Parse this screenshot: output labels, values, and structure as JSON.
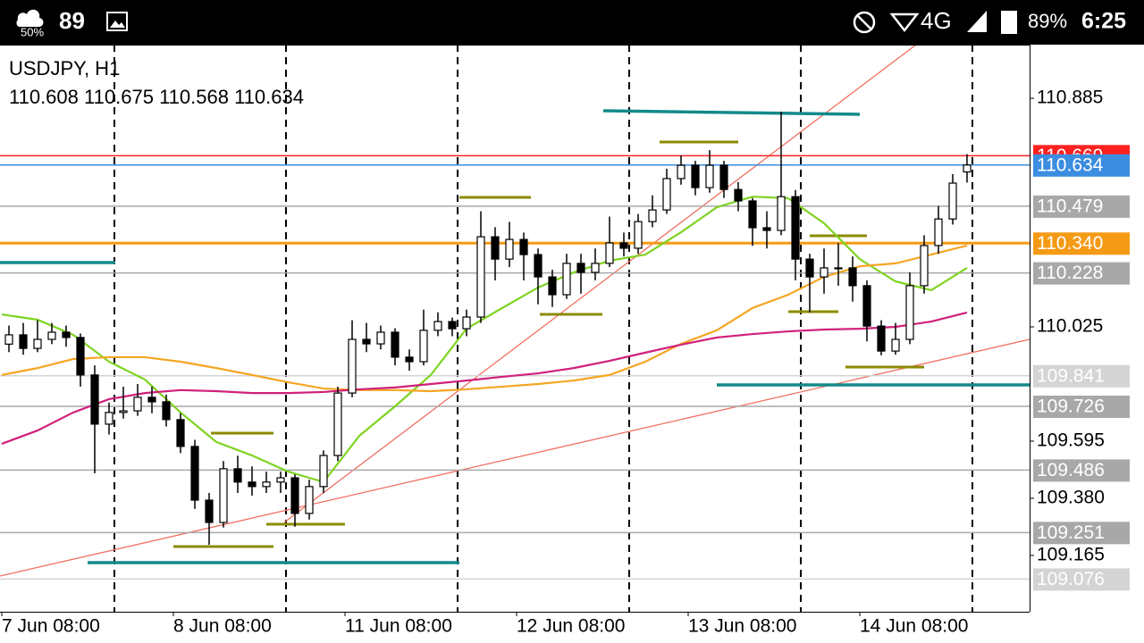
{
  "status_bar": {
    "battery_saver": "50%",
    "signal": "89",
    "network": "4G",
    "battery": "89%",
    "time": "6:25"
  },
  "chart_data": {
    "type": "candlestick",
    "title": "USDJPY, H1",
    "x": [
      1,
      3,
      5,
      7,
      9,
      11,
      13,
      15,
      17,
      19,
      21,
      23,
      25,
      27,
      29,
      31,
      33,
      35,
      37,
      39,
      41,
      43,
      45,
      47,
      49,
      51,
      53,
      55,
      57,
      59,
      61,
      63,
      65,
      67,
      69,
      71,
      73,
      75,
      77,
      79,
      81,
      83,
      85,
      87,
      89,
      91,
      93,
      95,
      97,
      99,
      101,
      103,
      105,
      107,
      109,
      111,
      113,
      115,
      117,
      119,
      121,
      123,
      125,
      127,
      129,
      131,
      133,
      135
    ],
    "open": [
      109.96,
      109.995,
      109.944,
      109.978,
      110.005,
      109.985,
      109.844,
      109.659,
      109.703,
      109.709,
      109.76,
      109.743,
      109.676,
      109.575,
      109.373,
      109.289,
      109.491,
      109.441,
      109.424,
      109.441,
      109.457,
      109.323,
      109.424,
      109.541,
      109.776,
      109.978,
      109.961,
      110.005,
      109.911,
      109.894,
      110.012,
      110.045,
      110.018,
      110.062,
      110.364,
      110.28,
      110.354,
      110.297,
      110.213,
      110.146,
      110.264,
      110.23,
      110.264,
      110.341,
      110.321,
      110.421,
      110.465,
      110.583,
      110.633,
      110.549,
      110.633,
      110.542,
      110.499,
      110.398,
      110.388,
      110.515,
      110.28,
      110.213,
      110.247,
      110.247,
      110.18,
      110.028,
      109.934,
      109.978,
      110.18,
      110.331,
      110.431,
      110.608
    ],
    "high": [
      110.03,
      110.04,
      110.05,
      110.04,
      110.03,
      110.0,
      109.88,
      109.74,
      109.8,
      109.81,
      109.8,
      109.77,
      109.7,
      109.6,
      109.4,
      109.52,
      109.54,
      109.5,
      109.48,
      109.48,
      109.47,
      109.45,
      109.56,
      109.8,
      110.05,
      110.04,
      110.03,
      110.02,
      109.94,
      110.09,
      110.08,
      110.06,
      110.09,
      110.46,
      110.4,
      110.42,
      110.38,
      110.32,
      110.24,
      110.3,
      110.3,
      110.32,
      110.44,
      110.38,
      110.45,
      110.52,
      110.62,
      110.67,
      110.65,
      110.69,
      110.65,
      110.57,
      110.51,
      110.46,
      110.835,
      110.54,
      110.3,
      110.32,
      110.34,
      110.29,
      110.2,
      110.05,
      110.04,
      110.23,
      110.37,
      110.48,
      110.6,
      110.675
    ],
    "low": [
      109.93,
      109.92,
      109.93,
      109.96,
      109.95,
      109.8,
      109.474,
      109.62,
      109.68,
      109.69,
      109.7,
      109.65,
      109.55,
      109.34,
      109.205,
      109.27,
      109.4,
      109.39,
      109.4,
      109.4,
      109.273,
      109.3,
      109.4,
      109.52,
      109.76,
      109.93,
      109.94,
      109.88,
      109.86,
      109.88,
      109.99,
      109.99,
      109.99,
      110.04,
      110.2,
      110.25,
      110.2,
      110.11,
      110.1,
      110.13,
      110.15,
      110.2,
      110.25,
      110.29,
      110.3,
      110.4,
      110.45,
      110.56,
      110.52,
      110.53,
      110.51,
      110.46,
      110.33,
      110.32,
      110.37,
      110.2,
      110.08,
      110.15,
      110.18,
      110.12,
      109.97,
      109.918,
      109.92,
      109.96,
      110.15,
      110.3,
      110.41,
      110.568
    ],
    "close": [
      109.995,
      109.944,
      109.978,
      110.005,
      109.985,
      109.844,
      109.659,
      109.703,
      109.709,
      109.76,
      109.743,
      109.676,
      109.575,
      109.373,
      109.289,
      109.491,
      109.441,
      109.424,
      109.441,
      109.457,
      109.323,
      109.424,
      109.541,
      109.776,
      109.978,
      109.961,
      110.005,
      109.911,
      109.894,
      110.012,
      110.045,
      110.018,
      110.062,
      110.364,
      110.28,
      110.354,
      110.297,
      110.213,
      110.146,
      110.264,
      110.23,
      110.264,
      110.341,
      110.321,
      110.421,
      110.465,
      110.583,
      110.633,
      110.549,
      110.633,
      110.542,
      110.499,
      110.398,
      110.388,
      110.515,
      110.28,
      110.213,
      110.247,
      110.247,
      110.18,
      110.028,
      109.934,
      109.978,
      110.18,
      110.331,
      110.431,
      110.566,
      110.634
    ],
    "up_color": "#ffffff",
    "down_color": "#000000",
    "wick_color": "#000000",
    "moving_averages": [
      {
        "color": "#7ed321",
        "x": [
          0,
          5,
          10,
          15,
          20,
          25,
          30,
          35,
          40,
          45,
          50,
          55,
          60,
          65,
          70,
          75,
          80,
          85,
          90,
          95,
          100,
          105,
          110,
          115,
          120,
          125,
          130,
          135
        ],
        "values": [
          110.072,
          110.052,
          109.995,
          109.894,
          109.827,
          109.703,
          109.592,
          109.541,
          109.481,
          109.441,
          109.615,
          109.726,
          109.844,
          110.018,
          110.096,
          110.173,
          110.23,
          110.274,
          110.297,
          110.381,
          110.475,
          110.515,
          110.509,
          110.415,
          110.28,
          110.196,
          110.163,
          110.247
        ]
      },
      {
        "color": "#f5a623",
        "x": [
          0,
          5,
          10,
          15,
          20,
          25,
          30,
          35,
          40,
          45,
          50,
          55,
          60,
          65,
          70,
          75,
          80,
          85,
          90,
          95,
          100,
          105,
          110,
          115,
          120,
          125,
          130,
          135
        ],
        "values": [
          109.844,
          109.87,
          109.904,
          109.911,
          109.911,
          109.894,
          109.87,
          109.844,
          109.817,
          109.793,
          109.787,
          109.787,
          109.783,
          109.79,
          109.8,
          109.81,
          109.823,
          109.844,
          109.894,
          109.961,
          110.012,
          110.096,
          110.146,
          110.213,
          110.253,
          110.264,
          110.297,
          110.331
        ]
      },
      {
        "color": "#d0207a",
        "x": [
          0,
          5,
          10,
          15,
          20,
          25,
          30,
          35,
          40,
          45,
          50,
          55,
          60,
          65,
          70,
          75,
          80,
          85,
          90,
          95,
          100,
          105,
          110,
          115,
          120,
          125,
          130,
          135
        ],
        "values": [
          109.585,
          109.635,
          109.703,
          109.753,
          109.776,
          109.787,
          109.783,
          109.776,
          109.776,
          109.78,
          109.79,
          109.797,
          109.81,
          109.823,
          109.837,
          109.85,
          109.87,
          109.897,
          109.928,
          109.958,
          109.985,
          109.998,
          110.008,
          110.015,
          110.018,
          110.025,
          110.045,
          110.079
        ]
      }
    ],
    "levels": [
      {
        "value": 110.669,
        "color": "#ff2020"
      },
      {
        "value": 110.634,
        "color": "#3b8de0"
      },
      {
        "value": 110.479,
        "color": "#a8a8a8"
      },
      {
        "value": 110.34,
        "label": "110.340",
        "color": "#f59a14"
      },
      {
        "value": 110.228,
        "color": "#a8a8a8"
      },
      {
        "value": 109.841,
        "color": "#d4d4d4"
      },
      {
        "value": 109.726,
        "color": "#a8a8a8"
      },
      {
        "value": 109.486,
        "color": "#a8a8a8"
      },
      {
        "value": 109.251,
        "color": "#a8a8a8"
      },
      {
        "value": 109.076,
        "color": "#d4d4d4"
      }
    ],
    "xlim": [
      -0.25,
      143.75
    ],
    "xticks": [
      {
        "value": 0,
        "label": "7 Jun 08:00"
      },
      {
        "value": 24,
        "label": "8 Jun 08:00"
      },
      {
        "value": 48,
        "label": "11 Jun 08:00"
      },
      {
        "value": 72,
        "label": "12 Jun 08:00"
      },
      {
        "value": 96,
        "label": "13 Jun 08:00"
      },
      {
        "value": 120,
        "label": "14 Jun 08:00"
      }
    ],
    "ylim": [
      108.953,
      111.087
    ],
    "yticks": [
      110.885,
      110.025,
      109.595,
      {
        "value": 109.38,
        "label": "109.380"
      },
      109.165
    ]
  }
}
